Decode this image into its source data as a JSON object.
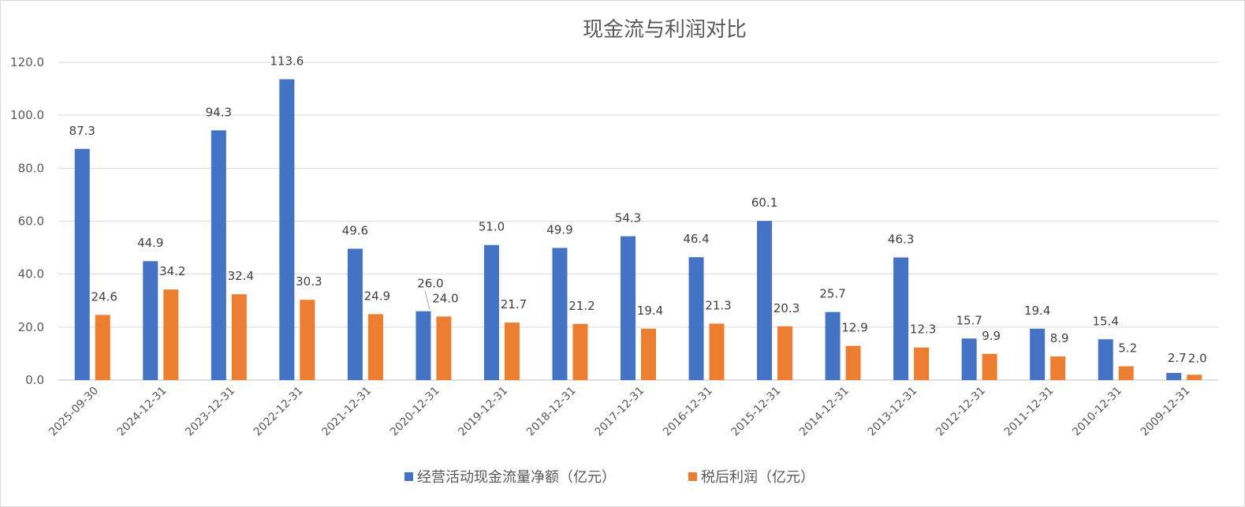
{
  "chart_data": {
    "type": "bar",
    "title": "现金流与利润对比",
    "categories": [
      "2025-09-30",
      "2024-12-31",
      "2023-12-31",
      "2022-12-31",
      "2021-12-31",
      "2020-12-31",
      "2019-12-31",
      "2018-12-31",
      "2017-12-31",
      "2016-12-31",
      "2015-12-31",
      "2014-12-31",
      "2013-12-31",
      "2012-12-31",
      "2011-12-31",
      "2010-12-31",
      "2009-12-31"
    ],
    "series": [
      {
        "name": "经营活动现金流量净额（亿元）",
        "color": "#4472C4",
        "values": [
          87.3,
          44.9,
          94.3,
          113.6,
          49.6,
          26.0,
          51.0,
          49.9,
          54.3,
          46.4,
          60.1,
          25.7,
          46.3,
          15.7,
          19.4,
          15.4,
          2.7
        ],
        "labels": [
          "87.3",
          "44.9",
          "94.3",
          "113.6",
          "49.6",
          "26.0",
          "51.0",
          "49.9",
          "54.3",
          "46.4",
          "60.1",
          "25.7",
          "46.3",
          "15.7",
          "19.4",
          "15.4",
          "2.7"
        ]
      },
      {
        "name": "税后利润（亿元）",
        "color": "#ED7D31",
        "values": [
          24.6,
          34.2,
          32.4,
          30.3,
          24.9,
          24.0,
          21.7,
          21.2,
          19.4,
          21.3,
          20.3,
          12.9,
          12.3,
          9.9,
          8.9,
          5.2,
          2.0
        ],
        "labels": [
          "24.6",
          "34.2",
          "32.4",
          "30.3",
          "24.9",
          "24.0",
          "21.7",
          "21.2",
          "19.4",
          "21.3",
          "20.3",
          "12.9",
          "12.3",
          "9.9",
          "8.9",
          "5.2",
          "2.0"
        ]
      }
    ],
    "yticks": [
      "0.0",
      "20.0",
      "40.0",
      "60.0",
      "80.0",
      "100.0",
      "120.0"
    ],
    "ylim": [
      0,
      120
    ],
    "grid": true,
    "legend_position": "bottom"
  }
}
